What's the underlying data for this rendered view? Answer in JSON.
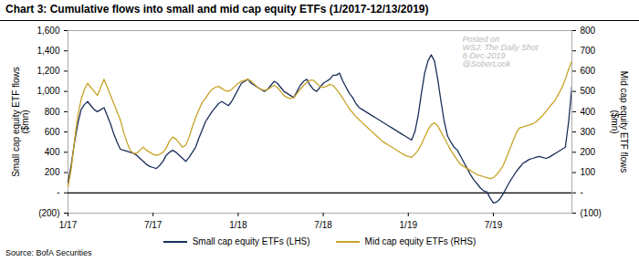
{
  "chart_data": {
    "type": "line",
    "title": "Chart 3: Cumulative flows into small and mid cap equity ETFs (1/2017-12/13/2019)",
    "categories": [
      "1/17",
      null,
      null,
      null,
      null,
      null,
      null,
      null,
      null,
      null,
      null,
      null,
      null,
      null,
      null,
      null,
      null,
      null,
      null,
      null,
      null,
      null,
      null,
      null,
      null,
      null,
      "7/17",
      null,
      null,
      null,
      null,
      null,
      null,
      null,
      null,
      null,
      null,
      null,
      null,
      null,
      null,
      null,
      null,
      null,
      null,
      null,
      null,
      null,
      null,
      null,
      null,
      null,
      "1/18",
      null,
      null,
      null,
      null,
      null,
      null,
      null,
      null,
      null,
      null,
      null,
      null,
      null,
      null,
      null,
      null,
      null,
      null,
      null,
      null,
      null,
      null,
      null,
      null,
      null,
      "7/18",
      null,
      null,
      null,
      null,
      null,
      null,
      null,
      null,
      null,
      null,
      null,
      null,
      null,
      null,
      null,
      null,
      null,
      null,
      null,
      null,
      null,
      null,
      null,
      null,
      null,
      "1/19",
      null,
      null,
      null,
      null,
      null,
      null,
      null,
      null,
      null,
      null,
      null,
      null,
      null,
      null,
      null,
      null,
      null,
      null,
      null,
      null,
      null,
      null,
      null,
      null,
      null,
      "7/19",
      null,
      null,
      null,
      null,
      null,
      null,
      null,
      null,
      null,
      null,
      null,
      null,
      null,
      null,
      null,
      null,
      null,
      null,
      null,
      null,
      null,
      null,
      null,
      null
    ],
    "ylabel": "Small cap equity ETF flows\n($mn)",
    "y2label": "Mid cap equity ETF flows\n($mn)",
    "ylim": [
      -200,
      1600
    ],
    "yticks": [
      {
        "value": -200,
        "label": "(200)"
      },
      {
        "value": 0,
        "label": "-"
      },
      200,
      400,
      600,
      800,
      {
        "value": 1000,
        "label": "1,000"
      },
      {
        "value": 1200,
        "label": "1,200"
      },
      {
        "value": 1400,
        "label": "1,400"
      },
      {
        "value": 1600,
        "label": "1,600"
      }
    ],
    "y2lim": [
      -100,
      800
    ],
    "y2ticks": [
      {
        "value": -100,
        "label": "(100)"
      },
      {
        "value": 0,
        "label": "-"
      },
      100,
      200,
      300,
      400,
      500,
      600,
      700,
      800
    ],
    "grid": false,
    "annotations": [
      "Posted on",
      "WSJ: The Daily Shot",
      "8-Dec-2019",
      "@SoberLook"
    ],
    "source": "Source: BofA Securities",
    "series": [
      {
        "name": "Small cap equity ETFs (LHS)",
        "color": "#1a2f5a",
        "values": [
          100,
          280,
          500,
          680,
          820,
          870,
          900,
          860,
          820,
          800,
          820,
          840,
          760,
          680,
          580,
          500,
          430,
          420,
          410,
          400,
          390,
          370,
          340,
          310,
          280,
          260,
          250,
          240,
          270,
          310,
          370,
          400,
          420,
          400,
          370,
          340,
          310,
          350,
          400,
          450,
          540,
          620,
          700,
          750,
          800,
          840,
          880,
          900,
          880,
          860,
          900,
          960,
          1020,
          1080,
          1100,
          1120,
          1080,
          1060,
          1040,
          1020,
          1000,
          1020,
          1060,
          1100,
          1080,
          1040,
          1000,
          980,
          960,
          940,
          1000,
          1060,
          1100,
          1120,
          1060,
          1020,
          1000,
          1040,
          1080,
          1100,
          1120,
          1160,
          1160,
          1180,
          1100,
          1040,
          980,
          940,
          880,
          840,
          820,
          800,
          780,
          760,
          740,
          720,
          700,
          680,
          660,
          640,
          620,
          600,
          580,
          560,
          540,
          520,
          600,
          760,
          980,
          1180,
          1300,
          1360,
          1300,
          1120,
          900,
          700,
          560,
          500,
          450,
          420,
          360,
          300,
          240,
          180,
          130,
          90,
          50,
          20,
          10,
          -50,
          -100,
          -90,
          -60,
          -10,
          50,
          110,
          160,
          210,
          250,
          290,
          310,
          330,
          340,
          350,
          360,
          350,
          340,
          350,
          370,
          390,
          410,
          430,
          450,
          700,
          1050
        ]
      },
      {
        "name": "Mid cap equity ETFs (RHS)",
        "color": "#c9a227",
        "axis": "y2",
        "values": [
          30,
          120,
          260,
          380,
          460,
          510,
          540,
          520,
          500,
          480,
          520,
          560,
          520,
          480,
          440,
          400,
          360,
          300,
          250,
          210,
          195,
          195,
          210,
          225,
          210,
          200,
          190,
          185,
          190,
          200,
          220,
          255,
          275,
          265,
          245,
          225,
          235,
          275,
          325,
          370,
          410,
          445,
          465,
          490,
          510,
          520,
          525,
          515,
          505,
          500,
          510,
          525,
          540,
          550,
          555,
          560,
          550,
          535,
          520,
          510,
          505,
          510,
          520,
          530,
          520,
          500,
          480,
          470,
          465,
          470,
          490,
          510,
          530,
          545,
          555,
          555,
          540,
          525,
          520,
          525,
          535,
          530,
          510,
          490,
          465,
          440,
          415,
          395,
          375,
          360,
          345,
          330,
          315,
          300,
          285,
          270,
          255,
          245,
          235,
          225,
          215,
          205,
          195,
          185,
          180,
          175,
          190,
          210,
          240,
          275,
          310,
          335,
          345,
          330,
          300,
          270,
          240,
          210,
          185,
          160,
          140,
          130,
          120,
          110,
          100,
          90,
          85,
          80,
          75,
          70,
          75,
          90,
          110,
          135,
          175,
          215,
          255,
          295,
          320,
          325,
          330,
          335,
          340,
          350,
          365,
          380,
          400,
          420,
          440,
          460,
          490,
          520,
          560,
          610,
          650
        ]
      }
    ]
  }
}
